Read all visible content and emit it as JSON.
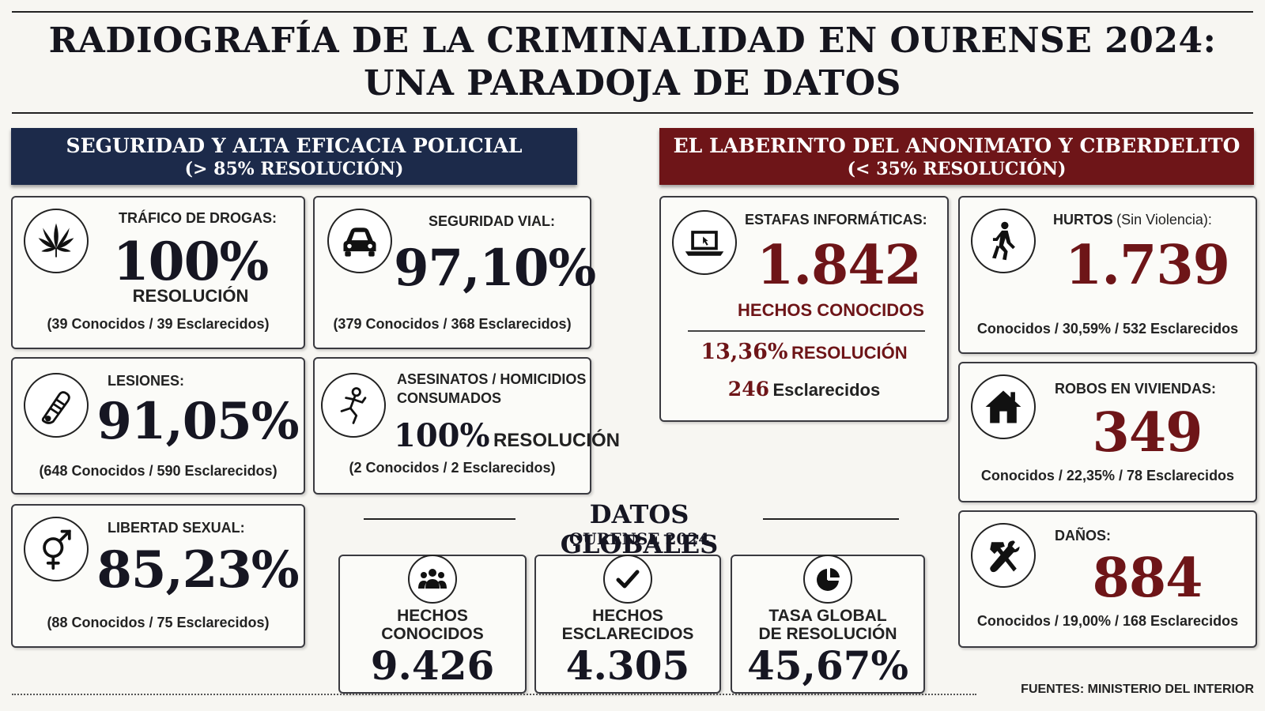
{
  "header": {
    "title_line1": "RADIOGRAFÍA DE LA CRIMINALIDAD EN OURENSE 2024:",
    "title_line2": "UNA PARADOJA DE DATOS"
  },
  "left_banner": {
    "title": "SEGURIDAD Y ALTA EFICACIA POLICIAL",
    "subtitle": "(> 85% RESOLUCIÓN)",
    "color": "#1c2a4a"
  },
  "right_banner": {
    "title": "EL LABERINTO DEL ANONIMATO Y CIBERDELITO",
    "subtitle": "(< 35% RESOLUCIÓN)",
    "color": "#6e1518"
  },
  "cards": {
    "drogas": {
      "icon": "cannabis-leaf-icon",
      "label": "TRÁFICO DE DROGAS:",
      "value": "100%",
      "unit": "RESOLUCIÓN",
      "detail": "(39 Conocidos / 39 Esclarecidos)"
    },
    "vial": {
      "icon": "car-icon",
      "label": "SEGURIDAD VIAL:",
      "value": "97,10%",
      "detail": "(379 Conocidos / 368 Esclarecidos)"
    },
    "lesiones": {
      "icon": "bandaged-arm-icon",
      "label": "LESIONES:",
      "value": "91,05%",
      "detail": "(648 Conocidos / 590 Esclarecidos)"
    },
    "asesinatos": {
      "icon": "body-outline-icon",
      "label_line1": "ASESINATOS / HOMICIDIOS",
      "label_line2": "CONSUMADOS",
      "value": "100%",
      "unit": "RESOLUCIÓN",
      "detail": "(2 Conocidos / 2 Esclarecidos)"
    },
    "libertad": {
      "icon": "gender-symbol-icon",
      "label": "LIBERTAD SEXUAL:",
      "value": "85,23%",
      "detail": "(88 Conocidos / 75 Esclarecidos)"
    },
    "estafas": {
      "icon": "laptop-icon",
      "label": "ESTAFAS INFORMÁTICAS:",
      "value": "1.842",
      "unit": "HECHOS CONOCIDOS",
      "rate_value": "13,36%",
      "rate_label": "RESOLUCIÓN",
      "cleared_value": "246",
      "cleared_label": "Esclarecidos"
    },
    "hurtos": {
      "icon": "walking-person-icon",
      "label_main": "HURTOS",
      "label_paren": "(Sin Violencia):",
      "value": "1.739",
      "detail": "Conocidos / 30,59% / 532 Esclarecidos"
    },
    "robos": {
      "icon": "house-icon",
      "label": "ROBOS EN VIVIENDAS:",
      "value": "349",
      "detail": "Conocidos / 22,35% / 78 Esclarecidos"
    },
    "danos": {
      "icon": "hammer-wrench-icon",
      "label": "DAÑOS:",
      "value": "884",
      "detail": "Conocidos / 19,00% / 168 Esclarecidos"
    }
  },
  "global": {
    "title": "DATOS GLOBALES",
    "subtitle": "OURENSE 2024",
    "boxes": [
      {
        "icon": "people-icon",
        "label_line1": "HECHOS",
        "label_line2": "CONOCIDOS",
        "value": "9.426"
      },
      {
        "icon": "checkmark-icon",
        "label_line1": "HECHOS",
        "label_line2": "ESCLARECIDOS",
        "value": "4.305"
      },
      {
        "icon": "pie-chart-icon",
        "label_line1": "TASA GLOBAL",
        "label_line2": "DE RESOLUCIÓN",
        "value": "45,67%"
      }
    ]
  },
  "footer": {
    "source": "FUENTES: MINISTERIO DEL INTERIOR"
  }
}
